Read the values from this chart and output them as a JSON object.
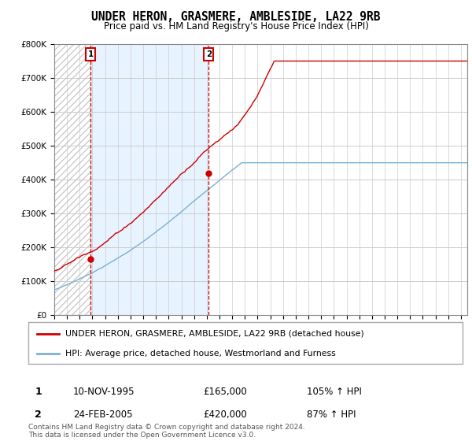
{
  "title": "UNDER HERON, GRASMERE, AMBLESIDE, LA22 9RB",
  "subtitle": "Price paid vs. HM Land Registry's House Price Index (HPI)",
  "ylim": [
    0,
    800000
  ],
  "yticks": [
    0,
    100000,
    200000,
    300000,
    400000,
    500000,
    600000,
    700000,
    800000
  ],
  "ytick_labels": [
    "£0",
    "£100K",
    "£200K",
    "£300K",
    "£400K",
    "£500K",
    "£600K",
    "£700K",
    "£800K"
  ],
  "sale1_date": 1995.86,
  "sale1_price": 165000,
  "sale2_date": 2005.15,
  "sale2_price": 420000,
  "xlim_start": 1993,
  "xlim_end": 2025.5,
  "legend_line1": "UNDER HERON, GRASMERE, AMBLESIDE, LA22 9RB (detached house)",
  "legend_line2": "HPI: Average price, detached house, Westmorland and Furness",
  "table_row1": [
    "1",
    "10-NOV-1995",
    "£165,000",
    "105% ↑ HPI"
  ],
  "table_row2": [
    "2",
    "24-FEB-2005",
    "£420,000",
    "87% ↑ HPI"
  ],
  "footer": "Contains HM Land Registry data © Crown copyright and database right 2024.\nThis data is licensed under the Open Government Licence v3.0.",
  "line_color_red": "#cc0000",
  "line_color_blue": "#7ab0d4",
  "bg_hatch_color": "#d8d8d8",
  "bg_between_color": "#ddeeff",
  "grid_color": "#cccccc"
}
